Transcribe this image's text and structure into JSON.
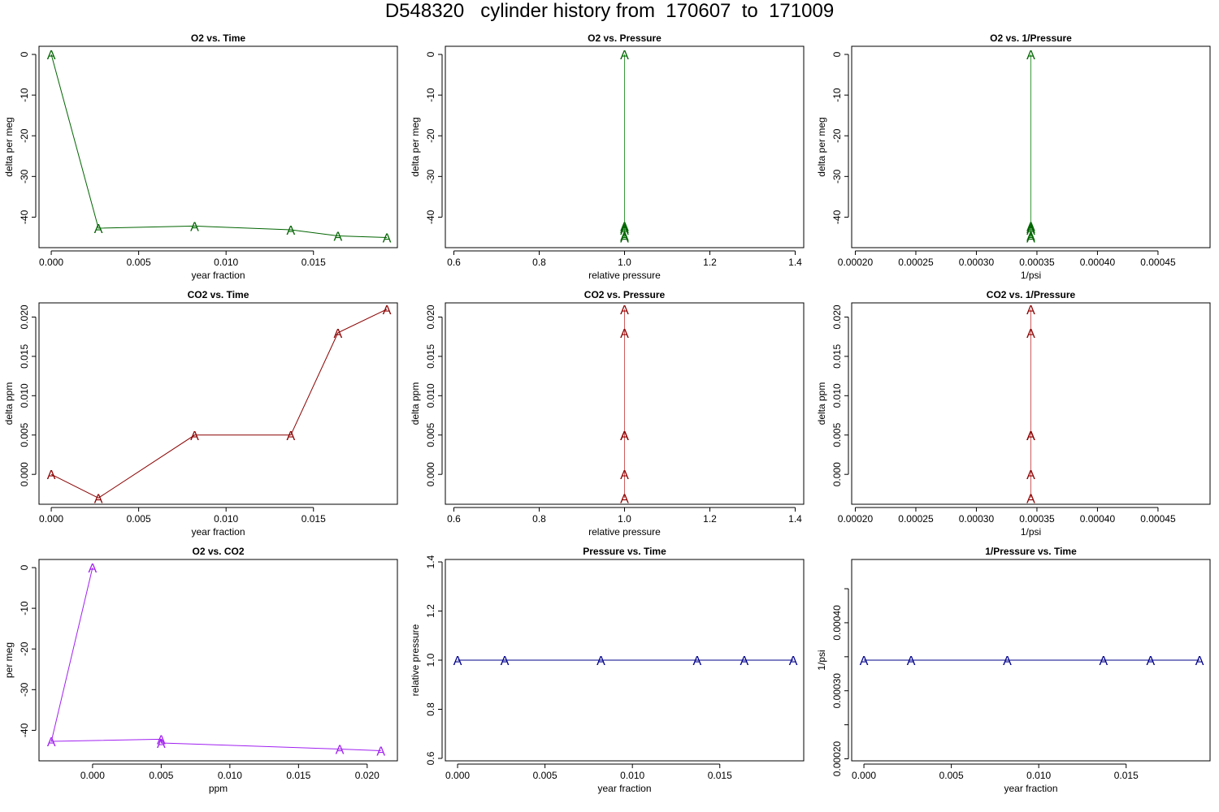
{
  "page": {
    "title": "D548320   cylinder history from  170607  to  171009"
  },
  "colors": {
    "o2": "#006400",
    "co2": "#8b0000",
    "o2_vs_co2": "#a020f0",
    "pressure": "#00008b",
    "o2_line": "#3a9a3a",
    "co2_line": "#cd5c5c"
  },
  "chart_data": [
    {
      "type": "line",
      "title": "O2 vs. Time",
      "xlabel": "year fraction",
      "ylabel": "delta per meg",
      "xlim": [
        -0.0007,
        0.0198
      ],
      "ylim": [
        -47.5,
        2
      ],
      "xticks": [
        0,
        0.005,
        0.01,
        0.015
      ],
      "xtick_labels": [
        "0.000",
        "0.005",
        "0.010",
        "0.015"
      ],
      "yticks": [
        0,
        -10,
        -20,
        -30,
        -40
      ],
      "ytick_labels": [
        "0",
        "-10",
        "-20",
        "-30",
        "-40"
      ],
      "marker": "A",
      "color_key": "o2",
      "line_color_key": "o2",
      "points": [
        {
          "x": 0.0,
          "y": 0.0
        },
        {
          "x": 0.0027,
          "y": -42.7
        },
        {
          "x": 0.0082,
          "y": -42.2
        },
        {
          "x": 0.0137,
          "y": -43.1
        },
        {
          "x": 0.0164,
          "y": -44.6
        },
        {
          "x": 0.0192,
          "y": -45.0
        }
      ]
    },
    {
      "type": "line",
      "title": "O2 vs. Pressure",
      "xlabel": "relative pressure",
      "ylabel": "delta per meg",
      "xlim": [
        0.58,
        1.42
      ],
      "ylim": [
        -47.5,
        2
      ],
      "xticks": [
        0.6,
        0.8,
        1.0,
        1.2,
        1.4
      ],
      "xtick_labels": [
        "0.6",
        "0.8",
        "1.0",
        "1.2",
        "1.4"
      ],
      "yticks": [
        0,
        -10,
        -20,
        -30,
        -40
      ],
      "ytick_labels": [
        "0",
        "-10",
        "-20",
        "-30",
        "-40"
      ],
      "marker": "A",
      "color_key": "o2",
      "line_color_key": "o2_line",
      "points": [
        {
          "x": 1.0,
          "y": 0.0
        },
        {
          "x": 1.0,
          "y": -42.7
        },
        {
          "x": 1.0,
          "y": -42.2
        },
        {
          "x": 1.0,
          "y": -43.1
        },
        {
          "x": 1.0,
          "y": -44.6
        },
        {
          "x": 1.0,
          "y": -45.0
        }
      ]
    },
    {
      "type": "line",
      "title": "O2 vs. 1/Pressure",
      "xlabel": "1/psi",
      "ylabel": "delta per meg",
      "xlim": [
        0.000197,
        0.000493
      ],
      "ylim": [
        -47.5,
        2
      ],
      "xticks": [
        0.0002,
        0.00025,
        0.0003,
        0.00035,
        0.0004,
        0.00045
      ],
      "xtick_labels": [
        "0.00020",
        "0.00025",
        "0.00030",
        "0.00035",
        "0.00040",
        "0.00045"
      ],
      "yticks": [
        0,
        -10,
        -20,
        -30,
        -40
      ],
      "ytick_labels": [
        "0",
        "-10",
        "-20",
        "-30",
        "-40"
      ],
      "marker": "A",
      "color_key": "o2",
      "line_color_key": "o2_line",
      "points": [
        {
          "x": 0.000345,
          "y": 0.0
        },
        {
          "x": 0.000345,
          "y": -42.7
        },
        {
          "x": 0.000345,
          "y": -42.2
        },
        {
          "x": 0.000345,
          "y": -43.1
        },
        {
          "x": 0.000345,
          "y": -44.6
        },
        {
          "x": 0.000345,
          "y": -45.0
        }
      ]
    },
    {
      "type": "line",
      "title": "CO2 vs. Time",
      "xlabel": "year fraction",
      "ylabel": "delta ppm",
      "xlim": [
        -0.0007,
        0.0198
      ],
      "ylim": [
        -0.0038,
        0.0218
      ],
      "xticks": [
        0,
        0.005,
        0.01,
        0.015
      ],
      "xtick_labels": [
        "0.000",
        "0.005",
        "0.010",
        "0.015"
      ],
      "yticks": [
        0,
        0.005,
        0.01,
        0.015,
        0.02
      ],
      "ytick_labels": [
        "0.000",
        "0.005",
        "0.010",
        "0.015",
        "0.020"
      ],
      "marker": "A",
      "color_key": "co2",
      "line_color_key": "co2",
      "points": [
        {
          "x": 0.0,
          "y": 0.0
        },
        {
          "x": 0.0027,
          "y": -0.003
        },
        {
          "x": 0.0082,
          "y": 0.005
        },
        {
          "x": 0.0137,
          "y": 0.005
        },
        {
          "x": 0.0164,
          "y": 0.018
        },
        {
          "x": 0.0192,
          "y": 0.021
        }
      ]
    },
    {
      "type": "line",
      "title": "CO2 vs. Pressure",
      "xlabel": "relative pressure",
      "ylabel": "delta ppm",
      "xlim": [
        0.58,
        1.42
      ],
      "ylim": [
        -0.0038,
        0.0218
      ],
      "xticks": [
        0.6,
        0.8,
        1.0,
        1.2,
        1.4
      ],
      "xtick_labels": [
        "0.6",
        "0.8",
        "1.0",
        "1.2",
        "1.4"
      ],
      "yticks": [
        0,
        0.005,
        0.01,
        0.015,
        0.02
      ],
      "ytick_labels": [
        "0.000",
        "0.005",
        "0.010",
        "0.015",
        "0.020"
      ],
      "marker": "A",
      "color_key": "co2",
      "line_color_key": "co2_line",
      "points": [
        {
          "x": 1.0,
          "y": 0.0
        },
        {
          "x": 1.0,
          "y": -0.003
        },
        {
          "x": 1.0,
          "y": 0.005
        },
        {
          "x": 1.0,
          "y": 0.005
        },
        {
          "x": 1.0,
          "y": 0.018
        },
        {
          "x": 1.0,
          "y": 0.021
        }
      ]
    },
    {
      "type": "line",
      "title": "CO2 vs. 1/Pressure",
      "xlabel": "1/psi",
      "ylabel": "delta ppm",
      "xlim": [
        0.000197,
        0.000493
      ],
      "ylim": [
        -0.0038,
        0.0218
      ],
      "xticks": [
        0.0002,
        0.00025,
        0.0003,
        0.00035,
        0.0004,
        0.00045
      ],
      "xtick_labels": [
        "0.00020",
        "0.00025",
        "0.00030",
        "0.00035",
        "0.00040",
        "0.00045"
      ],
      "yticks": [
        0,
        0.005,
        0.01,
        0.015,
        0.02
      ],
      "ytick_labels": [
        "0.000",
        "0.005",
        "0.010",
        "0.015",
        "0.020"
      ],
      "marker": "A",
      "color_key": "co2",
      "line_color_key": "co2_line",
      "points": [
        {
          "x": 0.000345,
          "y": 0.0
        },
        {
          "x": 0.000345,
          "y": -0.003
        },
        {
          "x": 0.000345,
          "y": 0.005
        },
        {
          "x": 0.000345,
          "y": 0.005
        },
        {
          "x": 0.000345,
          "y": 0.018
        },
        {
          "x": 0.000345,
          "y": 0.021
        }
      ]
    },
    {
      "type": "line",
      "title": "O2 vs. CO2",
      "xlabel": "ppm",
      "ylabel": "per meg",
      "xlim": [
        -0.0039,
        0.0222
      ],
      "ylim": [
        -47.5,
        2
      ],
      "xticks": [
        0,
        0.005,
        0.01,
        0.015,
        0.02
      ],
      "xtick_labels": [
        "0.000",
        "0.005",
        "0.010",
        "0.015",
        "0.020"
      ],
      "yticks": [
        0,
        -10,
        -20,
        -30,
        -40
      ],
      "ytick_labels": [
        "0",
        "-10",
        "-20",
        "-30",
        "-40"
      ],
      "marker": "A",
      "color_key": "o2_vs_co2",
      "line_color_key": "o2_vs_co2",
      "points": [
        {
          "x": -0.003,
          "y": -42.7
        },
        {
          "x": 0.0,
          "y": 0.0
        },
        {
          "x": 0.005,
          "y": -42.2
        },
        {
          "x": 0.005,
          "y": -43.1
        },
        {
          "x": 0.018,
          "y": -44.6
        },
        {
          "x": 0.021,
          "y": -45.0
        }
      ],
      "line_order": [
        {
          "x": 0.0,
          "y": 0.0
        },
        {
          "x": -0.003,
          "y": -42.7
        },
        {
          "x": 0.005,
          "y": -42.2
        },
        {
          "x": 0.005,
          "y": -43.1
        },
        {
          "x": 0.018,
          "y": -44.6
        },
        {
          "x": 0.021,
          "y": -45.0
        }
      ]
    },
    {
      "type": "line",
      "title": "Pressure vs. Time",
      "xlabel": "year fraction",
      "ylabel": "relative pressure",
      "xlim": [
        -0.0007,
        0.0198
      ],
      "ylim": [
        0.59,
        1.41
      ],
      "xticks": [
        0,
        0.005,
        0.01,
        0.015
      ],
      "xtick_labels": [
        "0.000",
        "0.005",
        "0.010",
        "0.015"
      ],
      "yticks": [
        0.6,
        0.8,
        1.0,
        1.2,
        1.4
      ],
      "ytick_labels": [
        "0.6",
        "0.8",
        "1.0",
        "1.2",
        "1.4"
      ],
      "marker": "A",
      "color_key": "pressure",
      "line_color_key": "pressure",
      "points": [
        {
          "x": 0.0,
          "y": 1.0
        },
        {
          "x": 0.0027,
          "y": 1.0
        },
        {
          "x": 0.0082,
          "y": 1.0
        },
        {
          "x": 0.0137,
          "y": 1.0
        },
        {
          "x": 0.0164,
          "y": 1.0
        },
        {
          "x": 0.0192,
          "y": 1.0
        }
      ]
    },
    {
      "type": "line",
      "title": "1/Pressure vs. Time",
      "xlabel": "year fraction",
      "ylabel": "1/psi",
      "xlim": [
        -0.0007,
        0.0198
      ],
      "ylim": [
        0.000197,
        0.000493
      ],
      "xticks": [
        0,
        0.005,
        0.01,
        0.015
      ],
      "xtick_labels": [
        "0.000",
        "0.005",
        "0.010",
        "0.015"
      ],
      "yticks": [
        0.0002,
        0.00025,
        0.0003,
        0.00035,
        0.0004,
        0.00045
      ],
      "ytick_labels": [
        "0.00020",
        "",
        "0.00030",
        "",
        "0.00040",
        ""
      ],
      "marker": "A",
      "color_key": "pressure",
      "line_color_key": "pressure",
      "points": [
        {
          "x": 0.0,
          "y": 0.000345
        },
        {
          "x": 0.0027,
          "y": 0.000345
        },
        {
          "x": 0.0082,
          "y": 0.000345
        },
        {
          "x": 0.0137,
          "y": 0.000345
        },
        {
          "x": 0.0164,
          "y": 0.000345
        },
        {
          "x": 0.0192,
          "y": 0.000345
        }
      ]
    }
  ]
}
